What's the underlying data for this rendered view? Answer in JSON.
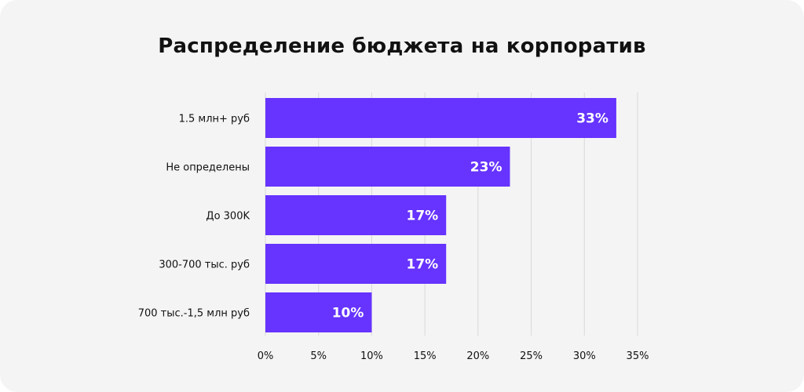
{
  "chart_data": {
    "type": "bar",
    "orientation": "horizontal",
    "title": "Распределение бюджета на корпоратив",
    "categories": [
      "1.5 млн+ руб",
      "Не определены",
      "До 300K",
      "300-700 тыс. руб",
      "700 тыс.-1,5 млн руб"
    ],
    "values": [
      33,
      23,
      17,
      17,
      10
    ],
    "value_labels": [
      "33%",
      "23%",
      "17%",
      "17%",
      "10%"
    ],
    "xlim": [
      0,
      35
    ],
    "x_ticks": [
      0,
      5,
      10,
      15,
      20,
      25,
      30,
      35
    ],
    "x_tick_labels": [
      "0%",
      "5%",
      "10%",
      "15%",
      "20%",
      "25%",
      "30%",
      "35%"
    ],
    "grid": "vertical",
    "legend": "none",
    "bar_color": "#6633ff",
    "grid_color": "#d9d9d9",
    "background_color": "#f4f4f4"
  }
}
